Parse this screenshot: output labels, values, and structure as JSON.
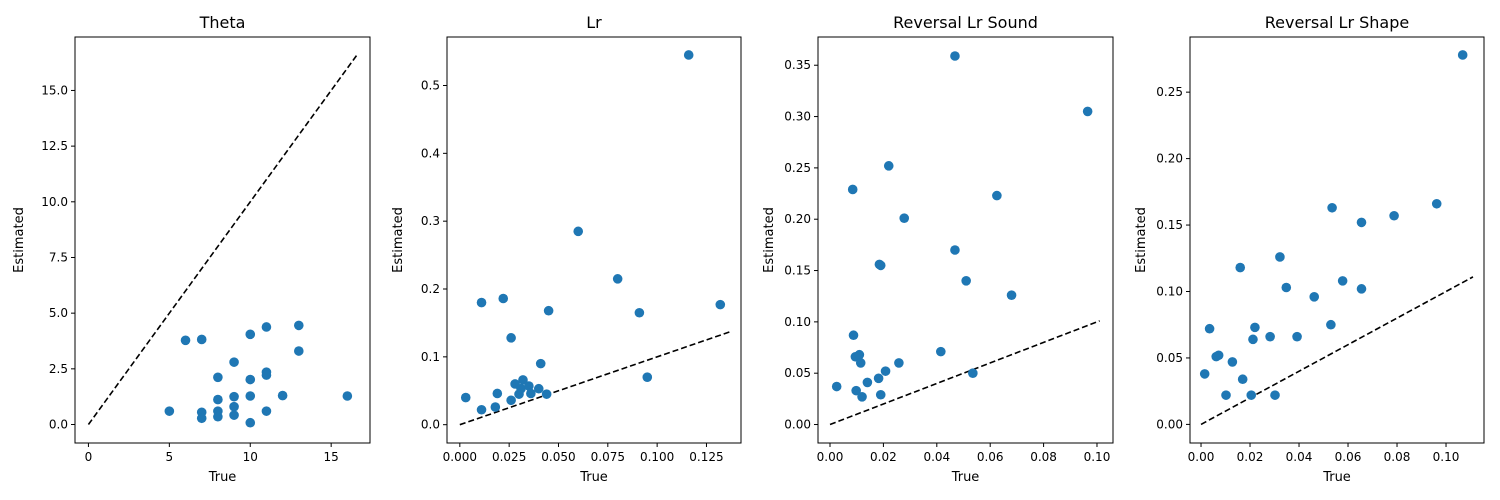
{
  "colors": {
    "points": "#1f77b4",
    "reference_line": "#000000"
  },
  "chart_data": [
    {
      "type": "scatter",
      "title": "Theta",
      "xlabel": "True",
      "ylabel": "Estimated",
      "xlim": [
        -0.83,
        17.4
      ],
      "ylim": [
        -0.83,
        17.4
      ],
      "xticks": [
        0,
        5,
        10,
        15
      ],
      "xtick_labels": [
        "0",
        "5",
        "10",
        "15"
      ],
      "yticks": [
        0,
        2.5,
        5,
        7.5,
        10,
        12.5,
        15
      ],
      "ytick_labels": [
        "0.0",
        "2.5",
        "5.0",
        "7.5",
        "10.0",
        "12.5",
        "15.0"
      ],
      "reference_line": [
        0,
        16.6
      ],
      "grid": false,
      "points": [
        {
          "x": 5,
          "y": 0.6
        },
        {
          "x": 6,
          "y": 3.78
        },
        {
          "x": 7,
          "y": 3.82
        },
        {
          "x": 7,
          "y": 0.55
        },
        {
          "x": 7,
          "y": 0.28
        },
        {
          "x": 8,
          "y": 2.12
        },
        {
          "x": 8,
          "y": 1.12
        },
        {
          "x": 8,
          "y": 0.6
        },
        {
          "x": 8,
          "y": 0.35
        },
        {
          "x": 9,
          "y": 2.8
        },
        {
          "x": 9,
          "y": 1.25
        },
        {
          "x": 9,
          "y": 0.8
        },
        {
          "x": 9,
          "y": 0.42
        },
        {
          "x": 10,
          "y": 4.05
        },
        {
          "x": 10,
          "y": 2.02
        },
        {
          "x": 10,
          "y": 1.28
        },
        {
          "x": 10,
          "y": 0.08
        },
        {
          "x": 11,
          "y": 4.38
        },
        {
          "x": 11,
          "y": 2.35
        },
        {
          "x": 11,
          "y": 2.22
        },
        {
          "x": 11,
          "y": 0.6
        },
        {
          "x": 12,
          "y": 1.3
        },
        {
          "x": 13,
          "y": 4.45
        },
        {
          "x": 13,
          "y": 3.3
        },
        {
          "x": 16,
          "y": 1.28
        }
      ]
    },
    {
      "type": "scatter",
      "title": "Lr",
      "xlabel": "True",
      "ylabel": "Estimated",
      "xlim": [
        -0.0065,
        0.1425
      ],
      "ylim": [
        -0.027,
        0.5715
      ],
      "xticks": [
        0,
        0.025,
        0.05,
        0.075,
        0.1,
        0.125
      ],
      "xtick_labels": [
        "0.000",
        "0.025",
        "0.050",
        "0.075",
        "0.100",
        "0.125"
      ],
      "yticks": [
        0,
        0.1,
        0.2,
        0.3,
        0.4,
        0.5
      ],
      "ytick_labels": [
        "0.0",
        "0.1",
        "0.2",
        "0.3",
        "0.4",
        "0.5"
      ],
      "reference_line": [
        0,
        0.137
      ],
      "grid": false,
      "points": [
        {
          "x": 0.003,
          "y": 0.04
        },
        {
          "x": 0.011,
          "y": 0.022
        },
        {
          "x": 0.011,
          "y": 0.18
        },
        {
          "x": 0.018,
          "y": 0.026
        },
        {
          "x": 0.019,
          "y": 0.046
        },
        {
          "x": 0.022,
          "y": 0.186
        },
        {
          "x": 0.026,
          "y": 0.128
        },
        {
          "x": 0.026,
          "y": 0.036
        },
        {
          "x": 0.028,
          "y": 0.06
        },
        {
          "x": 0.03,
          "y": 0.045
        },
        {
          "x": 0.031,
          "y": 0.053
        },
        {
          "x": 0.032,
          "y": 0.066
        },
        {
          "x": 0.035,
          "y": 0.057
        },
        {
          "x": 0.036,
          "y": 0.046
        },
        {
          "x": 0.04,
          "y": 0.053
        },
        {
          "x": 0.041,
          "y": 0.09
        },
        {
          "x": 0.044,
          "y": 0.045
        },
        {
          "x": 0.045,
          "y": 0.168
        },
        {
          "x": 0.06,
          "y": 0.285
        },
        {
          "x": 0.08,
          "y": 0.215
        },
        {
          "x": 0.091,
          "y": 0.165
        },
        {
          "x": 0.095,
          "y": 0.07
        },
        {
          "x": 0.116,
          "y": 0.545
        },
        {
          "x": 0.132,
          "y": 0.177
        }
      ]
    },
    {
      "type": "scatter",
      "title": "Reversal Lr Sound",
      "xlabel": "True",
      "ylabel": "Estimated",
      "xlim": [
        -0.0045,
        0.106
      ],
      "ylim": [
        -0.018,
        0.3775
      ],
      "xticks": [
        0,
        0.02,
        0.04,
        0.06,
        0.08,
        0.1
      ],
      "xtick_labels": [
        "0.00",
        "0.02",
        "0.04",
        "0.06",
        "0.08",
        "0.10"
      ],
      "yticks": [
        0,
        0.05,
        0.1,
        0.15,
        0.2,
        0.25,
        0.3,
        0.35
      ],
      "ytick_labels": [
        "0.00",
        "0.05",
        "0.10",
        "0.15",
        "0.20",
        "0.25",
        "0.30",
        "0.35"
      ],
      "reference_line": [
        0,
        0.101
      ],
      "grid": false,
      "points": [
        {
          "x": 0.0025,
          "y": 0.037
        },
        {
          "x": 0.0085,
          "y": 0.229
        },
        {
          "x": 0.0088,
          "y": 0.087
        },
        {
          "x": 0.0095,
          "y": 0.066
        },
        {
          "x": 0.0098,
          "y": 0.033
        },
        {
          "x": 0.011,
          "y": 0.068
        },
        {
          "x": 0.0115,
          "y": 0.06
        },
        {
          "x": 0.012,
          "y": 0.027
        },
        {
          "x": 0.014,
          "y": 0.041
        },
        {
          "x": 0.0182,
          "y": 0.045
        },
        {
          "x": 0.0185,
          "y": 0.156
        },
        {
          "x": 0.019,
          "y": 0.155
        },
        {
          "x": 0.019,
          "y": 0.029
        },
        {
          "x": 0.0208,
          "y": 0.052
        },
        {
          "x": 0.022,
          "y": 0.252
        },
        {
          "x": 0.0258,
          "y": 0.06
        },
        {
          "x": 0.0278,
          "y": 0.201
        },
        {
          "x": 0.0415,
          "y": 0.071
        },
        {
          "x": 0.0468,
          "y": 0.359
        },
        {
          "x": 0.0468,
          "y": 0.17
        },
        {
          "x": 0.051,
          "y": 0.14
        },
        {
          "x": 0.0535,
          "y": 0.05
        },
        {
          "x": 0.0625,
          "y": 0.223
        },
        {
          "x": 0.068,
          "y": 0.126
        },
        {
          "x": 0.0965,
          "y": 0.305
        }
      ]
    },
    {
      "type": "scatter",
      "title": "Reversal Lr Shape",
      "xlabel": "True",
      "ylabel": "Estimated",
      "xlim": [
        -0.0045,
        0.1155
      ],
      "ylim": [
        -0.014,
        0.2915
      ],
      "xticks": [
        0,
        0.02,
        0.04,
        0.06,
        0.08,
        0.1
      ],
      "xtick_labels": [
        "0.00",
        "0.02",
        "0.04",
        "0.06",
        "0.08",
        "0.10"
      ],
      "yticks": [
        0,
        0.05,
        0.1,
        0.15,
        0.2,
        0.25
      ],
      "ytick_labels": [
        "0.00",
        "0.05",
        "0.10",
        "0.15",
        "0.20",
        "0.25"
      ],
      "reference_line": [
        0,
        0.111
      ],
      "grid": false,
      "points": [
        {
          "x": 0.0015,
          "y": 0.038
        },
        {
          "x": 0.0035,
          "y": 0.072
        },
        {
          "x": 0.0062,
          "y": 0.051
        },
        {
          "x": 0.0072,
          "y": 0.052
        },
        {
          "x": 0.0102,
          "y": 0.022
        },
        {
          "x": 0.0128,
          "y": 0.047
        },
        {
          "x": 0.016,
          "y": 0.118
        },
        {
          "x": 0.017,
          "y": 0.034
        },
        {
          "x": 0.0205,
          "y": 0.022
        },
        {
          "x": 0.0212,
          "y": 0.064
        },
        {
          "x": 0.022,
          "y": 0.073
        },
        {
          "x": 0.0282,
          "y": 0.066
        },
        {
          "x": 0.0302,
          "y": 0.022
        },
        {
          "x": 0.0322,
          "y": 0.126
        },
        {
          "x": 0.0348,
          "y": 0.103
        },
        {
          "x": 0.0392,
          "y": 0.066
        },
        {
          "x": 0.0462,
          "y": 0.096
        },
        {
          "x": 0.053,
          "y": 0.075
        },
        {
          "x": 0.0535,
          "y": 0.163
        },
        {
          "x": 0.0578,
          "y": 0.108
        },
        {
          "x": 0.0655,
          "y": 0.152
        },
        {
          "x": 0.0655,
          "y": 0.102
        },
        {
          "x": 0.0788,
          "y": 0.157
        },
        {
          "x": 0.0962,
          "y": 0.166
        },
        {
          "x": 0.1068,
          "y": 0.278
        }
      ]
    }
  ]
}
